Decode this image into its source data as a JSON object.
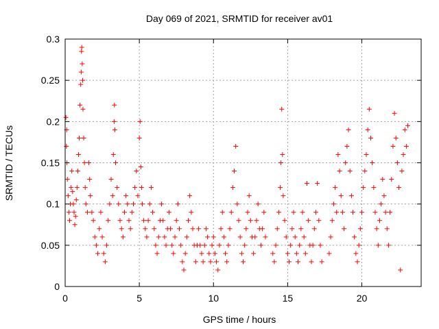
{
  "chart_data": {
    "type": "scatter",
    "title": "Day 069 of 2021, SRMTID for receiver av01",
    "xlabel": "GPS time / hours",
    "ylabel": "SRMTID / TECUs",
    "xlim": [
      0,
      24
    ],
    "ylim": [
      0,
      0.3
    ],
    "grid": true,
    "marker": "+",
    "marker_color": "#ff0000",
    "x_ticks": [
      {
        "value": 0,
        "label": "0"
      },
      {
        "value": 5,
        "label": "5"
      },
      {
        "value": 10,
        "label": "10"
      },
      {
        "value": 15,
        "label": "15"
      },
      {
        "value": 20,
        "label": "20"
      }
    ],
    "y_ticks": [
      {
        "value": 0,
        "label": "0"
      },
      {
        "value": 0.05,
        "label": "0.05"
      },
      {
        "value": 0.1,
        "label": "0.1"
      },
      {
        "value": 0.15,
        "label": "0.15"
      },
      {
        "value": 0.2,
        "label": "0.2"
      },
      {
        "value": 0.25,
        "label": "0.25"
      },
      {
        "value": 0.3,
        "label": "0.3"
      }
    ],
    "series": [
      {
        "name": "SRMTID",
        "points": [
          [
            0.05,
            0.205
          ],
          [
            0.1,
            0.19
          ],
          [
            0.08,
            0.17
          ],
          [
            0.12,
            0.15
          ],
          [
            0.15,
            0.13
          ],
          [
            0.2,
            0.11
          ],
          [
            0.25,
            0.09
          ],
          [
            0.3,
            0.08
          ],
          [
            0.35,
            0.1
          ],
          [
            0.4,
            0.12
          ],
          [
            0.45,
            0.14
          ],
          [
            0.5,
            0.115
          ],
          [
            0.55,
            0.1
          ],
          [
            0.6,
            0.09
          ],
          [
            0.65,
            0.075
          ],
          [
            0.7,
            0.085
          ],
          [
            0.75,
            0.105
          ],
          [
            0.8,
            0.12
          ],
          [
            0.85,
            0.14
          ],
          [
            0.9,
            0.16
          ],
          [
            0.95,
            0.18
          ],
          [
            1.0,
            0.22
          ],
          [
            1.05,
            0.245
          ],
          [
            1.08,
            0.26
          ],
          [
            1.1,
            0.285
          ],
          [
            1.12,
            0.29
          ],
          [
            1.15,
            0.27
          ],
          [
            1.18,
            0.25
          ],
          [
            1.2,
            0.215
          ],
          [
            1.25,
            0.18
          ],
          [
            1.3,
            0.15
          ],
          [
            1.35,
            0.12
          ],
          [
            1.4,
            0.1
          ],
          [
            1.5,
            0.09
          ],
          [
            1.6,
            0.15
          ],
          [
            1.65,
            0.13
          ],
          [
            1.7,
            0.11
          ],
          [
            1.8,
            0.09
          ],
          [
            1.9,
            0.08
          ],
          [
            2.0,
            0.06
          ],
          [
            2.1,
            0.05
          ],
          [
            2.2,
            0.04
          ],
          [
            2.3,
            0.07
          ],
          [
            2.4,
            0.09
          ],
          [
            2.5,
            0.06
          ],
          [
            2.6,
            0.04
          ],
          [
            2.7,
            0.03
          ],
          [
            2.8,
            0.05
          ],
          [
            2.9,
            0.08
          ],
          [
            3.0,
            0.1
          ],
          [
            3.1,
            0.13
          ],
          [
            3.2,
            0.11
          ],
          [
            3.25,
            0.16
          ],
          [
            3.3,
            0.2
          ],
          [
            3.32,
            0.22
          ],
          [
            3.35,
            0.19
          ],
          [
            3.4,
            0.15
          ],
          [
            3.5,
            0.12
          ],
          [
            3.6,
            0.1
          ],
          [
            3.7,
            0.08
          ],
          [
            3.8,
            0.07
          ],
          [
            3.9,
            0.06
          ],
          [
            4.0,
            0.09
          ],
          [
            4.1,
            0.11
          ],
          [
            4.2,
            0.1
          ],
          [
            4.3,
            0.08
          ],
          [
            4.4,
            0.07
          ],
          [
            4.5,
            0.09
          ],
          [
            4.6,
            0.1
          ],
          [
            4.7,
            0.12
          ],
          [
            4.8,
            0.14
          ],
          [
            4.9,
            0.11
          ],
          [
            5.0,
            0.18
          ],
          [
            5.05,
            0.2
          ],
          [
            5.1,
            0.145
          ],
          [
            5.15,
            0.12
          ],
          [
            5.2,
            0.1
          ],
          [
            5.3,
            0.08
          ],
          [
            5.4,
            0.07
          ],
          [
            5.5,
            0.06
          ],
          [
            5.6,
            0.08
          ],
          [
            5.7,
            0.1
          ],
          [
            5.8,
            0.12
          ],
          [
            5.9,
            0.09
          ],
          [
            6.0,
            0.07
          ],
          [
            6.1,
            0.05
          ],
          [
            6.2,
            0.04
          ],
          [
            6.3,
            0.06
          ],
          [
            6.4,
            0.08
          ],
          [
            6.5,
            0.1
          ],
          [
            6.6,
            0.08
          ],
          [
            6.7,
            0.06
          ],
          [
            6.8,
            0.05
          ],
          [
            6.9,
            0.07
          ],
          [
            7.0,
            0.09
          ],
          [
            7.1,
            0.07
          ],
          [
            7.2,
            0.05
          ],
          [
            7.3,
            0.04
          ],
          [
            7.4,
            0.06
          ],
          [
            7.5,
            0.08
          ],
          [
            7.6,
            0.1
          ],
          [
            7.7,
            0.07
          ],
          [
            7.8,
            0.05
          ],
          [
            7.9,
            0.03
          ],
          [
            8.0,
            0.02
          ],
          [
            8.1,
            0.04
          ],
          [
            8.2,
            0.06
          ],
          [
            8.3,
            0.08
          ],
          [
            8.4,
            0.11
          ],
          [
            8.5,
            0.09
          ],
          [
            8.6,
            0.07
          ],
          [
            8.7,
            0.05
          ],
          [
            8.8,
            0.03
          ],
          [
            8.9,
            0.05
          ],
          [
            9.0,
            0.07
          ],
          [
            9.1,
            0.05
          ],
          [
            9.2,
            0.04
          ],
          [
            9.3,
            0.03
          ],
          [
            9.4,
            0.05
          ],
          [
            9.5,
            0.07
          ],
          [
            9.6,
            0.06
          ],
          [
            9.7,
            0.04
          ],
          [
            9.8,
            0.03
          ],
          [
            9.9,
            0.05
          ],
          [
            10.0,
            0.06
          ],
          [
            10.1,
            0.04
          ],
          [
            10.2,
            0.03
          ],
          [
            10.3,
            0.02
          ],
          [
            10.4,
            0.05
          ],
          [
            10.5,
            0.07
          ],
          [
            10.6,
            0.09
          ],
          [
            10.7,
            0.06
          ],
          [
            10.8,
            0.04
          ],
          [
            10.9,
            0.03
          ],
          [
            11.0,
            0.05
          ],
          [
            11.1,
            0.07
          ],
          [
            11.2,
            0.09
          ],
          [
            11.3,
            0.12
          ],
          [
            11.4,
            0.14
          ],
          [
            11.5,
            0.17
          ],
          [
            11.6,
            0.1
          ],
          [
            11.7,
            0.08
          ],
          [
            11.8,
            0.06
          ],
          [
            11.9,
            0.04
          ],
          [
            12.0,
            0.03
          ],
          [
            12.1,
            0.05
          ],
          [
            12.2,
            0.07
          ],
          [
            12.3,
            0.09
          ],
          [
            12.4,
            0.11
          ],
          [
            12.5,
            0.08
          ],
          [
            12.6,
            0.06
          ],
          [
            12.7,
            0.04
          ],
          [
            12.8,
            0.06
          ],
          [
            12.9,
            0.08
          ],
          [
            13.0,
            0.1
          ],
          [
            13.1,
            0.07
          ],
          [
            13.2,
            0.05
          ],
          [
            13.3,
            0.07
          ],
          [
            13.4,
            0.09
          ],
          [
            13.5,
            0.06
          ],
          [
            14.0,
            0.04
          ],
          [
            14.1,
            0.03
          ],
          [
            14.2,
            0.05
          ],
          [
            14.3,
            0.07
          ],
          [
            14.4,
            0.09
          ],
          [
            14.5,
            0.12
          ],
          [
            14.55,
            0.15
          ],
          [
            14.6,
            0.215
          ],
          [
            14.65,
            0.16
          ],
          [
            14.7,
            0.11
          ],
          [
            14.8,
            0.08
          ],
          [
            14.9,
            0.06
          ],
          [
            15.0,
            0.04
          ],
          [
            15.1,
            0.03
          ],
          [
            15.2,
            0.05
          ],
          [
            15.3,
            0.07
          ],
          [
            15.4,
            0.09
          ],
          [
            15.5,
            0.06
          ],
          [
            15.6,
            0.04
          ],
          [
            15.7,
            0.03
          ],
          [
            15.8,
            0.05
          ],
          [
            15.9,
            0.07
          ],
          [
            16.0,
            0.09
          ],
          [
            16.1,
            0.06
          ],
          [
            16.2,
            0.04
          ],
          [
            16.3,
            0.125
          ],
          [
            16.4,
            0.08
          ],
          [
            16.5,
            0.05
          ],
          [
            16.6,
            0.03
          ],
          [
            16.7,
            0.05
          ],
          [
            16.8,
            0.07
          ],
          [
            16.9,
            0.09
          ],
          [
            17.0,
            0.125
          ],
          [
            17.1,
            0.08
          ],
          [
            17.2,
            0.05
          ],
          [
            17.3,
            0.03
          ],
          [
            17.8,
            0.04
          ],
          [
            17.9,
            0.06
          ],
          [
            18.0,
            0.08
          ],
          [
            18.1,
            0.1
          ],
          [
            18.2,
            0.12
          ],
          [
            18.3,
            0.09
          ],
          [
            18.4,
            0.16
          ],
          [
            18.5,
            0.14
          ],
          [
            18.6,
            0.11
          ],
          [
            18.7,
            0.09
          ],
          [
            18.8,
            0.07
          ],
          [
            18.9,
            0.15
          ],
          [
            19.0,
            0.17
          ],
          [
            19.1,
            0.19
          ],
          [
            19.2,
            0.14
          ],
          [
            19.3,
            0.11
          ],
          [
            19.4,
            0.09
          ],
          [
            19.5,
            0.06
          ],
          [
            19.6,
            0.04
          ],
          [
            19.7,
            0.03
          ],
          [
            19.8,
            0.05
          ],
          [
            19.9,
            0.07
          ],
          [
            20.0,
            0.09
          ],
          [
            20.1,
            0.12
          ],
          [
            20.2,
            0.14
          ],
          [
            20.3,
            0.16
          ],
          [
            20.4,
            0.19
          ],
          [
            20.5,
            0.215
          ],
          [
            20.6,
            0.18
          ],
          [
            20.7,
            0.15
          ],
          [
            20.8,
            0.12
          ],
          [
            20.9,
            0.09
          ],
          [
            21.0,
            0.07
          ],
          [
            21.1,
            0.05
          ],
          [
            21.2,
            0.08
          ],
          [
            21.3,
            0.1
          ],
          [
            21.4,
            0.13
          ],
          [
            21.5,
            0.11
          ],
          [
            21.6,
            0.09
          ],
          [
            21.7,
            0.07
          ],
          [
            21.8,
            0.05
          ],
          [
            21.9,
            0.09
          ],
          [
            22.0,
            0.13
          ],
          [
            22.1,
            0.17
          ],
          [
            22.2,
            0.21
          ],
          [
            22.3,
            0.18
          ],
          [
            22.4,
            0.15
          ],
          [
            22.5,
            0.12
          ],
          [
            22.6,
            0.02
          ],
          [
            22.7,
            0.14
          ],
          [
            22.8,
            0.16
          ],
          [
            22.9,
            0.19
          ],
          [
            23.0,
            0.17
          ],
          [
            23.1,
            0.195
          ]
        ]
      }
    ]
  }
}
